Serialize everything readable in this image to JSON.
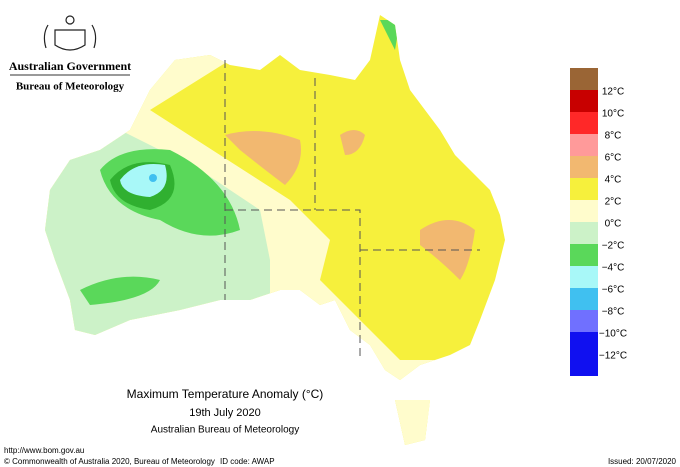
{
  "header": {
    "government": "Australian Government",
    "bureau": "Bureau of Meteorology"
  },
  "legend": {
    "colors": [
      "#9a6535",
      "#c80000",
      "#ff2828",
      "#ff9a9a",
      "#f2b870",
      "#f6f03c",
      "#fffccc",
      "#ccf2c8",
      "#5ad85a",
      "#a8f8f8",
      "#40c0f0",
      "#7070ff",
      "#1010f0",
      "#1010f0"
    ],
    "labels": [
      "12°C",
      "10°C",
      "8°C",
      "6°C",
      "4°C",
      "2°C",
      "0°C",
      "−2°C",
      "−4°C",
      "−6°C",
      "−8°C",
      "−10°C",
      "−12°C"
    ]
  },
  "title": {
    "line1": "Maximum Temperature Anomaly (°C)",
    "line2": "19th July 2020",
    "line3": "Australian Bureau of Meteorology"
  },
  "footer": {
    "url": "http://www.bom.gov.au",
    "copyright": "© Commonwealth of Australia 2020, Bureau of Meteorology",
    "id_code": "ID code: AWAP",
    "issued": "Issued: 20/07/2020"
  }
}
